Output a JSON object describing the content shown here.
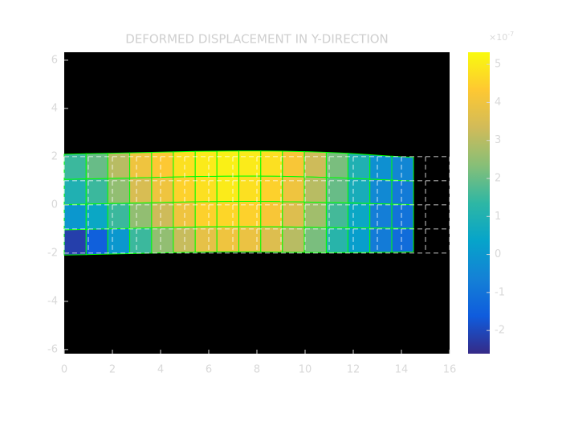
{
  "chart_data": {
    "type": "mesh",
    "title": "DEFORMED DISPLACEMENT IN Y-DIRECTION",
    "xlim": [
      0,
      16
    ],
    "ylim": [
      -6.17,
      6.33
    ],
    "xticks": [
      0,
      2,
      4,
      6,
      8,
      10,
      12,
      14,
      16
    ],
    "yticks": [
      -6,
      -4,
      -2,
      0,
      2,
      4,
      6
    ],
    "x_nodes": [
      0,
      1,
      2,
      3,
      4,
      5,
      6,
      7,
      8,
      9,
      10,
      11,
      12,
      13,
      14,
      15,
      16
    ],
    "y_nodes": [
      2,
      1,
      0,
      -1,
      -2
    ],
    "deformed_x": [
      0,
      0.91,
      1.81,
      2.72,
      3.63,
      4.53,
      5.44,
      6.34,
      7.25,
      8.16,
      9.06,
      9.97,
      10.88,
      11.78,
      12.69,
      13.6,
      14.5
    ],
    "deformed_top": [
      2.1,
      2.12,
      2.14,
      2.16,
      2.18,
      2.2,
      2.22,
      2.23,
      2.24,
      2.24,
      2.23,
      2.21,
      2.18,
      2.14,
      2.08,
      2.02,
      1.97
    ],
    "deformed_bottom": [
      -2.08,
      -2.06,
      -2.04,
      -2.02,
      -2.0,
      -1.98,
      -1.96,
      -1.95,
      -1.95,
      -1.95,
      -1.96,
      -1.97,
      -1.98,
      -1.98,
      -1.97,
      -1.96,
      -1.95
    ],
    "values": [
      [
        1.5,
        2,
        3,
        4,
        4.3,
        4.8,
        5,
        5.1,
        5,
        4.8,
        4.2,
        3.3,
        2.2,
        1,
        -0.2,
        -0.5
      ],
      [
        1,
        1.5,
        2.5,
        3.5,
        4,
        4.5,
        4.8,
        5,
        4.8,
        4.5,
        4,
        3,
        2,
        0.8,
        -0.4,
        -0.8
      ],
      [
        0,
        0.5,
        1.5,
        2.5,
        3.3,
        4,
        4.5,
        4.6,
        4.5,
        4.2,
        3.6,
        2.7,
        1.6,
        0.5,
        -0.7,
        -1
      ],
      [
        -2.2,
        -1.5,
        0,
        1.5,
        2.5,
        3.2,
        3.8,
        4,
        3.9,
        3.6,
        3,
        2.2,
        1.2,
        0.2,
        -0.8,
        -1.2
      ]
    ],
    "mesh_color": "#00ff00",
    "undeformed_color": "#ffffff",
    "colormap": "parula",
    "clim": [
      -2.61,
      5.32
    ],
    "cticks": [
      -2,
      -1,
      0,
      1,
      2,
      3,
      4,
      5
    ],
    "colorbar_scale": {
      "base": "×10",
      "exponent": "-7"
    }
  }
}
